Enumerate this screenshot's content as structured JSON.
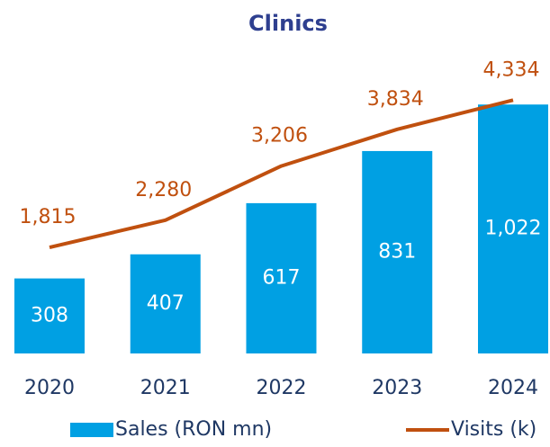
{
  "chart_data": {
    "type": "bar",
    "title": "Clinics",
    "categories": [
      "2020",
      "2021",
      "2022",
      "2023",
      "2024"
    ],
    "series": [
      {
        "name": "Sales (RON mn)",
        "type": "bar",
        "color": "#00a0e3",
        "values": [
          308,
          407,
          617,
          831,
          1022
        ],
        "value_labels": [
          "308",
          "407",
          "617",
          "831",
          "1,022"
        ]
      },
      {
        "name": "Visits (k)",
        "type": "line",
        "axis": "y2",
        "color": "#c0500f",
        "values": [
          1815,
          2280,
          3206,
          3834,
          4334
        ],
        "value_labels": [
          "1,815",
          "2,280",
          "3,206",
          "3,834",
          "4,334"
        ]
      }
    ],
    "ylim": [
      0,
      1200
    ],
    "y2lim": [
      0,
      5000
    ],
    "legend": "bottom"
  }
}
